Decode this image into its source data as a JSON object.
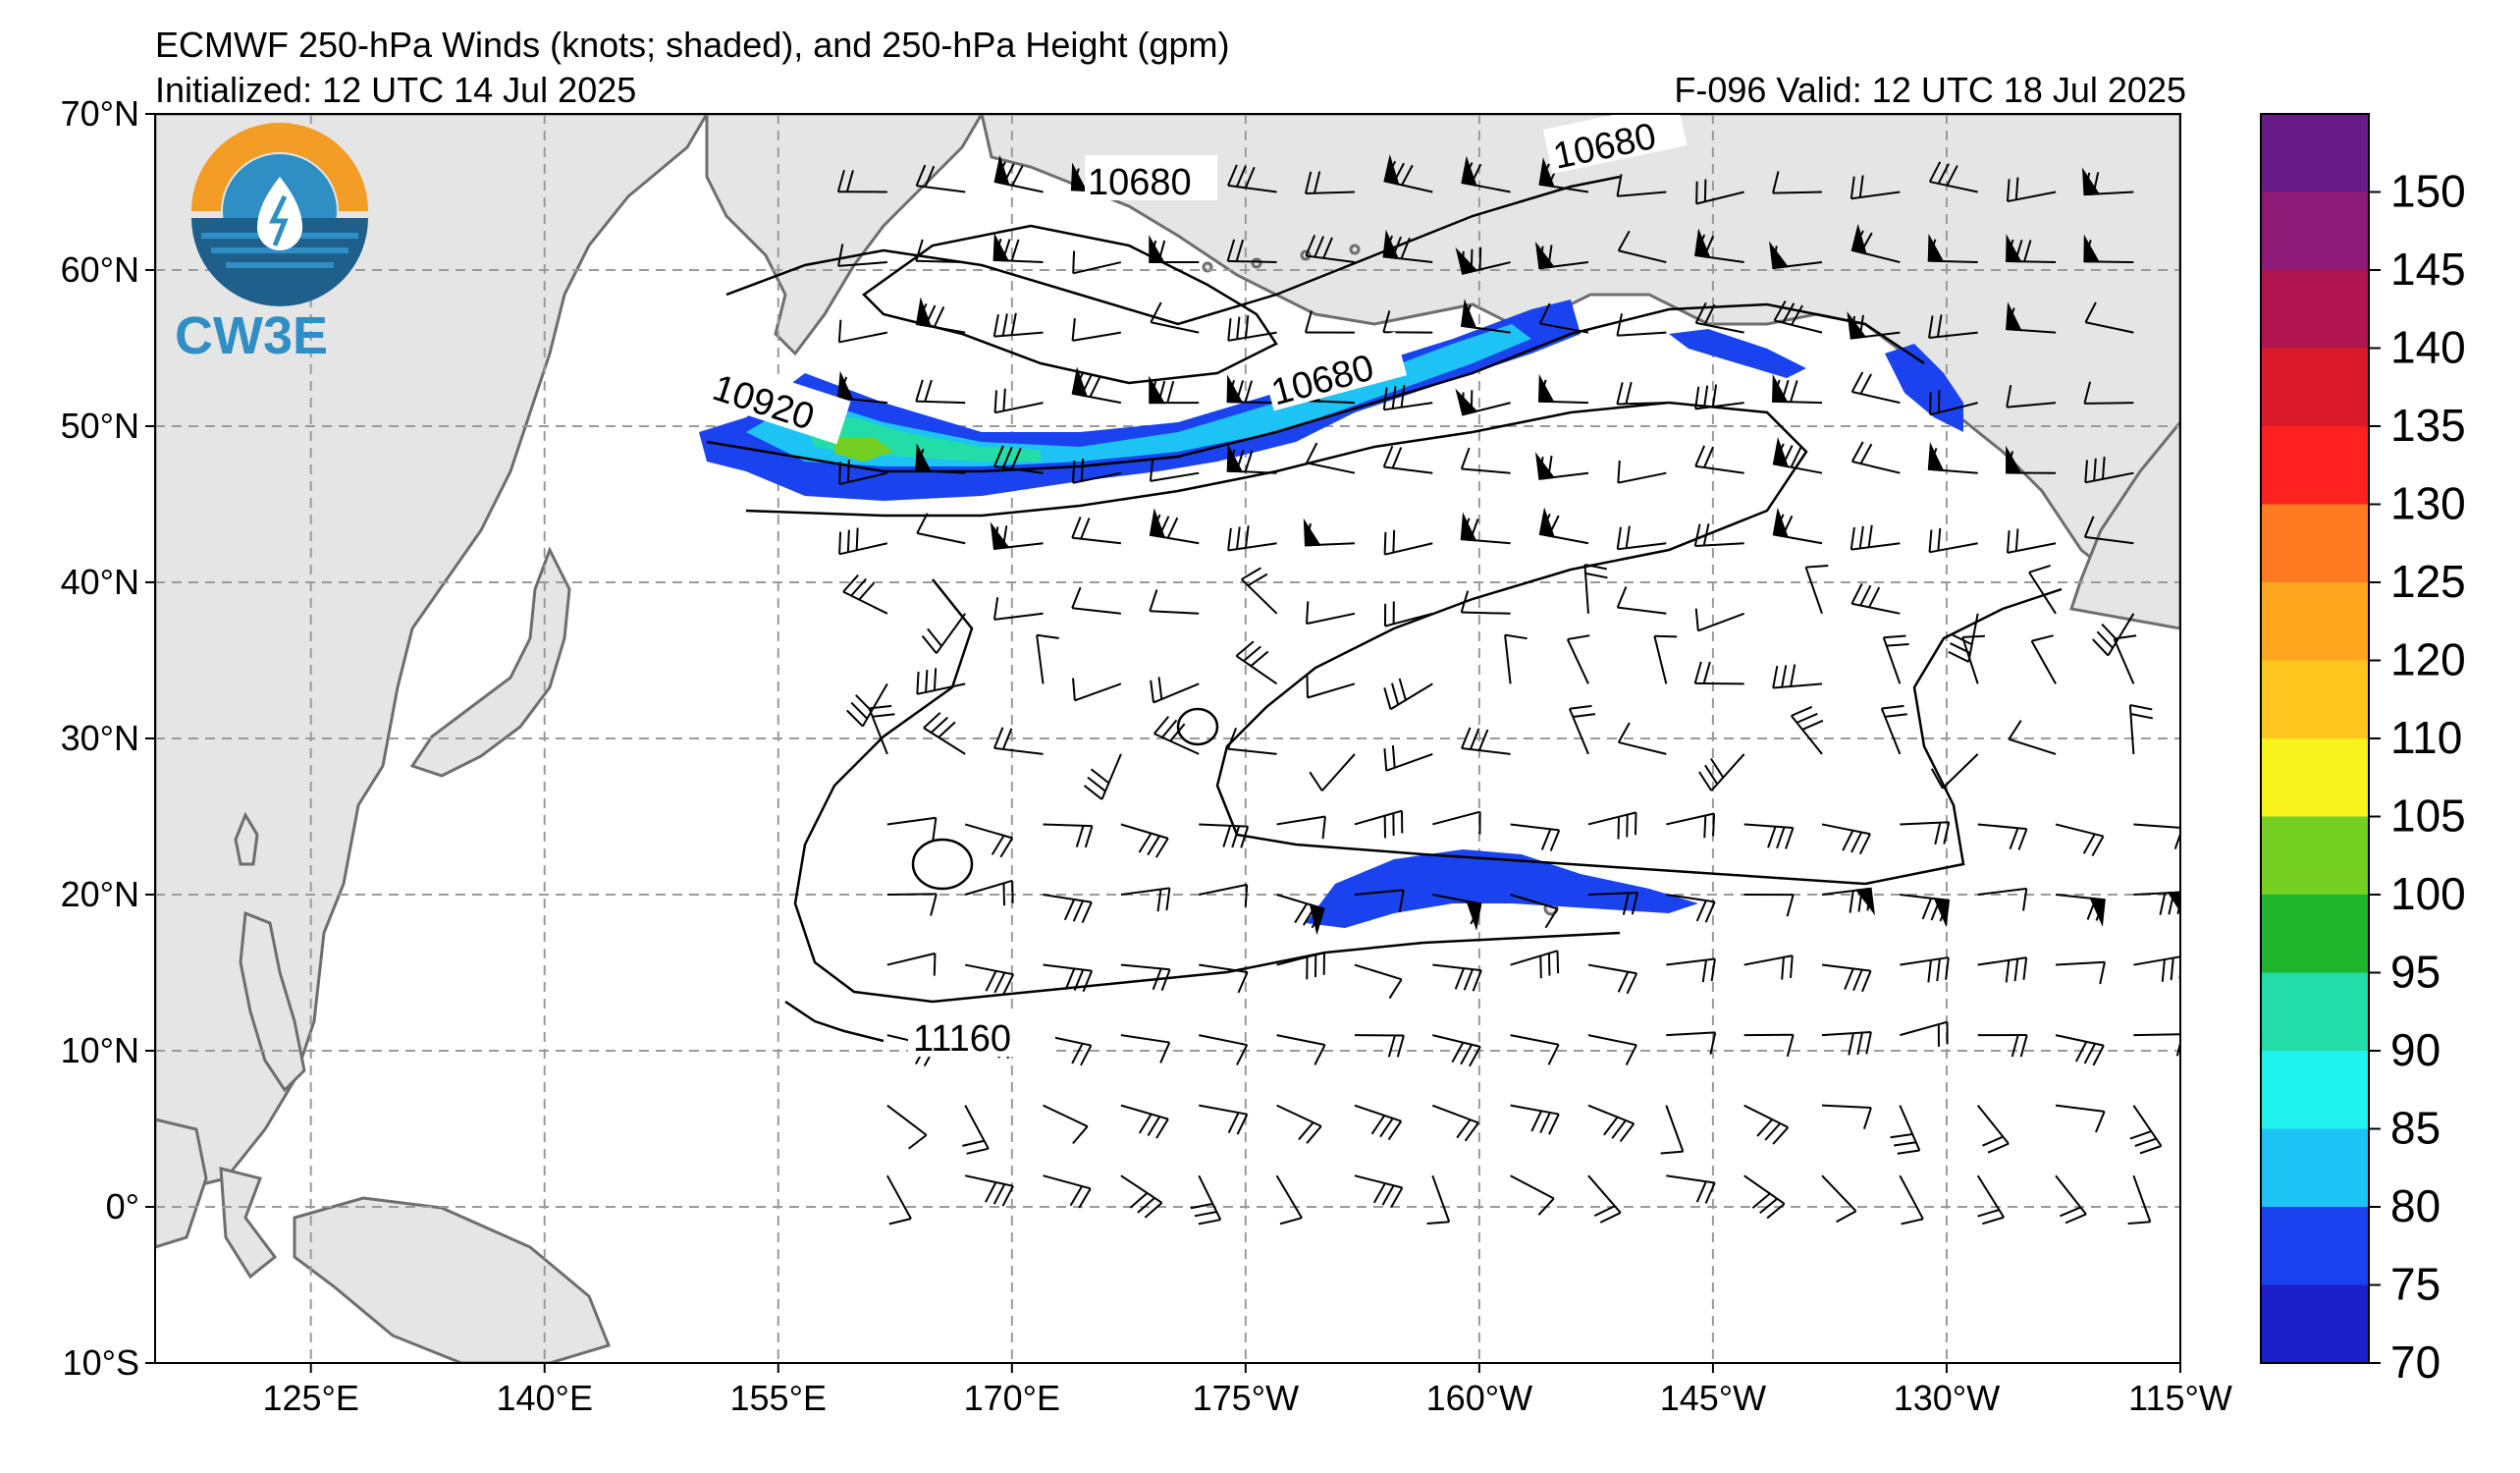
{
  "header": {
    "title": "ECMWF 250-hPa Winds (knots; shaded), and 250-hPa Height (gpm)",
    "initialized": "Initialized: 12 UTC 14 Jul 2025",
    "valid": "F-096  Valid: 12 UTC 18 Jul 2025"
  },
  "logo": {
    "text": "CW3E",
    "colors": {
      "orange": "#f39c26",
      "blue": "#2f8fc4",
      "navy": "#1e5f8c"
    }
  },
  "map": {
    "lat_labels": [
      "70°N",
      "60°N",
      "50°N",
      "40°N",
      "30°N",
      "20°N",
      "10°N",
      "0°",
      "10°S"
    ],
    "lon_labels": [
      "125°E",
      "140°E",
      "155°E",
      "170°E",
      "175°W",
      "160°W",
      "145°W",
      "130°W",
      "115°W"
    ],
    "lat_range": [
      -10,
      70
    ],
    "lon_range": [
      115,
      245
    ],
    "contour_labels": [
      "10680",
      "10680",
      "10680",
      "10920",
      "11160"
    ],
    "colors": {
      "land": "#e5e5e5",
      "coast": "#6e6e6e",
      "grid": "#9a9a9a",
      "ocean": "#ffffff"
    }
  },
  "colorbar": {
    "levels": [
      "150",
      "145",
      "140",
      "135",
      "130",
      "125",
      "120",
      "110",
      "105",
      "100",
      "95",
      "90",
      "85",
      "80",
      "75",
      "70"
    ],
    "colors": [
      "#6a1b8a",
      "#8e1a78",
      "#b01550",
      "#d81a2a",
      "#ff2020",
      "#ff7a1e",
      "#ffa61f",
      "#ffc51f",
      "#f9f31d",
      "#74cf23",
      "#1fb52a",
      "#22dea6",
      "#20f3ef",
      "#1dc3f5",
      "#1a43ef",
      "#1b1fc9"
    ]
  }
}
